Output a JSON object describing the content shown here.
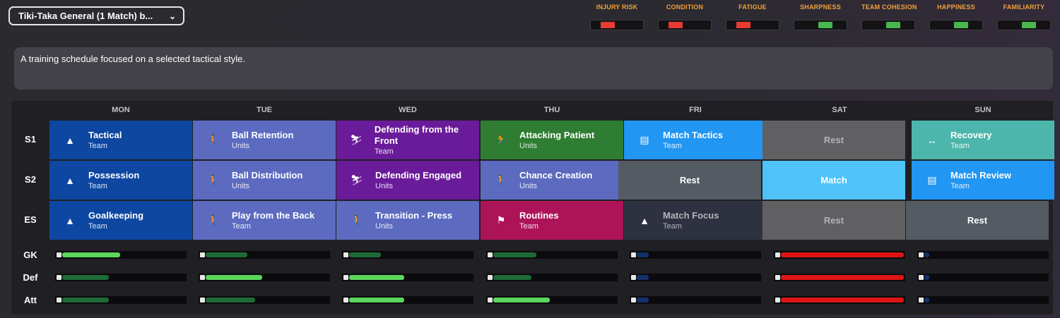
{
  "schedule_dropdown": {
    "label": "Tiki-Taka General (1 Match) b..."
  },
  "meters": [
    {
      "label": "INJURY RISK",
      "color": "#e83a32",
      "level": "low"
    },
    {
      "label": "CONDITION",
      "color": "#e83a32",
      "level": "low"
    },
    {
      "label": "FATIGUE",
      "color": "#e83a32",
      "level": "low"
    },
    {
      "label": "SHARPNESS",
      "color": "#49b64f",
      "level": "medium"
    },
    {
      "label": "TEAM COHESION",
      "color": "#49b64f",
      "level": "medium"
    },
    {
      "label": "HAPPINESS",
      "color": "#49b64f",
      "level": "medium"
    },
    {
      "label": "FAMILIARITY",
      "color": "#49b64f",
      "level": "medium"
    }
  ],
  "description": "A training schedule focused on a selected tactical style.",
  "days": [
    "MON",
    "TUE",
    "WED",
    "THU",
    "FRI",
    "SAT",
    "SUN"
  ],
  "sessions_rows": [
    "S1",
    "S2",
    "ES"
  ],
  "sessions": [
    [
      {
        "name": "Tactical",
        "type": "Team",
        "icon": "cone-icon",
        "color": "#0d47a1"
      },
      {
        "name": "Ball Retention",
        "type": "Units",
        "icon": "player-ball-icon",
        "color": "#5c6bc0"
      },
      {
        "name": "Defending from the Front",
        "type": "Team",
        "icon": "tackle-icon",
        "color": "#6a1b9a"
      },
      {
        "name": "Attacking Patient",
        "type": "Units",
        "icon": "running-icon",
        "color": "#2e7d32"
      },
      {
        "name": "Match Tactics",
        "type": "Team",
        "icon": "tactics-board-icon",
        "color": "#2196f3"
      },
      {
        "name": "Rest",
        "type": "",
        "icon": "",
        "color": "#606062",
        "style": "rest-dim"
      },
      {
        "name": "Recovery",
        "type": "Team",
        "icon": "dumbbell-icon",
        "color": "#4db6ac"
      }
    ],
    [
      {
        "name": "Possession",
        "type": "Team",
        "icon": "cone-icon",
        "color": "#0d47a1"
      },
      {
        "name": "Ball Distribution",
        "type": "Units",
        "icon": "player-ball-icon",
        "color": "#5c6bc0"
      },
      {
        "name": "Defending Engaged",
        "type": "Units",
        "icon": "tackle-icon",
        "color": "#6a1b9a"
      },
      {
        "name": "Chance Creation",
        "type": "Units",
        "icon": "player-ball-icon",
        "color": "#5c6bc0"
      },
      {
        "name": "Rest",
        "type": "",
        "icon": "",
        "color": "#545b62",
        "style": "rest"
      },
      {
        "name": "Match",
        "type": "",
        "icon": "",
        "color": "#4fc3f7",
        "style": "rest"
      },
      {
        "name": "Match Review",
        "type": "Team",
        "icon": "tactics-board-icon",
        "color": "#2196f3"
      }
    ],
    [
      {
        "name": "Goalkeeping",
        "type": "Team",
        "icon": "cone-icon",
        "color": "#0d47a1"
      },
      {
        "name": "Play from the Back",
        "type": "Team",
        "icon": "player-ball-icon",
        "color": "#5c6bc0"
      },
      {
        "name": "Transition - Press",
        "type": "Units",
        "icon": "player-ball-icon",
        "color": "#5c6bc0"
      },
      {
        "name": "Routines",
        "type": "Team",
        "icon": "corner-flag-icon",
        "color": "#ad1457"
      },
      {
        "name": "Match Focus",
        "type": "Team",
        "icon": "cone-icon",
        "color": "#2e3240",
        "style": "dim"
      },
      {
        "name": "Rest",
        "type": "",
        "icon": "",
        "color": "#606062",
        "style": "rest-dim"
      },
      {
        "name": "Rest",
        "type": "",
        "icon": "",
        "color": "#545b62",
        "style": "rest"
      }
    ]
  ],
  "load_rows": [
    {
      "label": "GK",
      "values": [
        {
          "pct": 0.47,
          "color": "#5bd75b"
        },
        {
          "pct": 0.34,
          "color": "#1e6b37"
        },
        {
          "pct": 0.26,
          "color": "#1e6b37"
        },
        {
          "pct": 0.35,
          "color": "#1e6b37"
        },
        {
          "pct": 0.1,
          "color": "#14306b"
        },
        {
          "pct": 1.0,
          "color": "#e01414"
        },
        {
          "pct": 0.04,
          "color": "#14306b"
        }
      ]
    },
    {
      "label": "Def",
      "values": [
        {
          "pct": 0.38,
          "color": "#1e6b37"
        },
        {
          "pct": 0.46,
          "color": "#5bd75b"
        },
        {
          "pct": 0.45,
          "color": "#5bd75b"
        },
        {
          "pct": 0.31,
          "color": "#1e6b37"
        },
        {
          "pct": 0.1,
          "color": "#14306b"
        },
        {
          "pct": 1.0,
          "color": "#e01414"
        },
        {
          "pct": 0.04,
          "color": "#14306b"
        }
      ]
    },
    {
      "label": "Att",
      "values": [
        {
          "pct": 0.38,
          "color": "#1e6b37"
        },
        {
          "pct": 0.4,
          "color": "#1e6b37"
        },
        {
          "pct": 0.45,
          "color": "#5bd75b"
        },
        {
          "pct": 0.46,
          "color": "#5bd75b"
        },
        {
          "pct": 0.1,
          "color": "#14306b"
        },
        {
          "pct": 1.0,
          "color": "#e01414"
        },
        {
          "pct": 0.04,
          "color": "#14306b"
        }
      ]
    }
  ]
}
